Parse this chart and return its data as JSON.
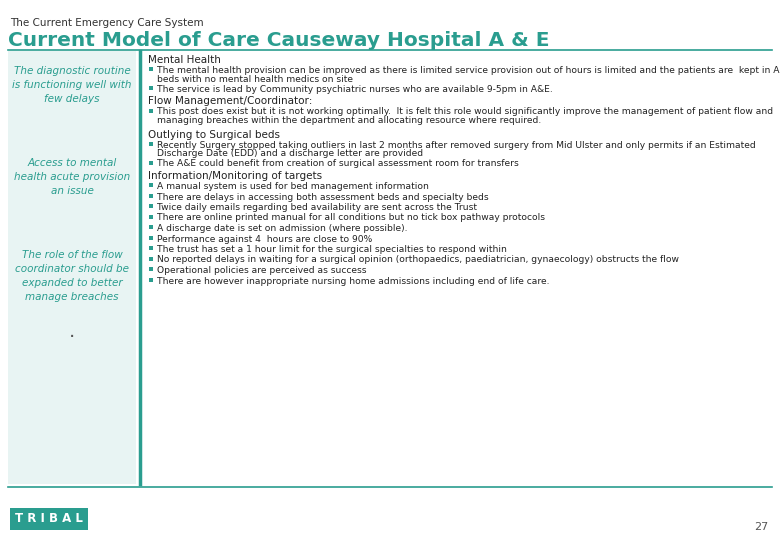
{
  "title_small": "The Current Emergency Care System",
  "title_large": "Current Model of Care Causeway Hospital A & E",
  "teal_color": "#2A9D8F",
  "light_teal_bg": "#e8f4f3",
  "left_panel_texts": [
    "The diagnostic routine\nis functioning well with\nfew delays",
    "Access to mental\nhealth acute provision\nan issue",
    "The role of the flow\ncoordinator should be\nexpanded to better\nmanage breaches"
  ],
  "section_headers": [
    "Mental Health",
    "Flow Management/Coordinator:",
    "Outlying to Surgical beds",
    "Information/Monitoring of targets"
  ],
  "bullets": {
    "Mental Health": [
      "The mental health provision can be improved as there is limited service provision out of hours is limited and the patients are  kept in A&E\n  beds with no mental health medics on site",
      "The service is lead by Community psychiatric nurses who are available 9-5pm in A&E."
    ],
    "Flow Management/Coordinator:": [
      "This post does exist but it is not working optimally.  It is felt this role would significantly improve the management of patient flow and\n  managing breaches within the department and allocating resource where required."
    ],
    "Outlying to Surgical beds": [
      "Recently Surgery stopped taking outliers in last 2 months after removed surgery from Mid Ulster and only permits if an Estimated\n  Discharge Date (EDD) and a discharge letter are provided",
      "The A&E could benefit from creation of surgical assessment room for transfers"
    ],
    "Information/Monitoring of targets": [
      "A manual system is used for bed management information",
      "There are delays in accessing both assessment beds and specialty beds",
      "Twice daily emails regarding bed availability are sent across the Trust",
      "There are online printed manual for all conditions but no tick box pathway protocols",
      "A discharge date is set on admission (where possible).",
      "Performance against 4  hours are close to 90%",
      "The trust has set a 1 hour limit for the surgical specialties to respond within",
      "No reported delays in waiting for a surgical opinion (orthopaedics, paediatrician, gynaecology) obstructs the flow",
      "Operational policies are perceived as success",
      "There are however inappropriate nursing home admissions including end of life care."
    ]
  },
  "footer_text": "T R I B A L",
  "page_number": "27",
  "bg_color": "#ffffff"
}
